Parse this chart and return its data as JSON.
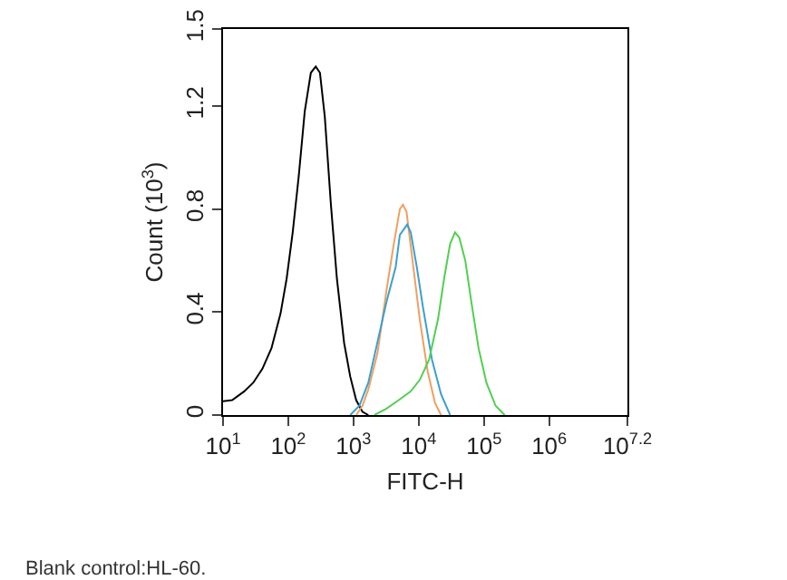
{
  "chart_data": {
    "type": "line",
    "xlabel": "FITC-H",
    "ylabel": "Count (10$^{3}$)",
    "log": "x",
    "marker": "none",
    "line_style": "solid",
    "xlim": [
      10,
      15848932
    ],
    "xticks": [
      {
        "value": 10,
        "label": "10$^{1}$"
      },
      {
        "value": 100,
        "label": "10$^{2}$"
      },
      {
        "value": 1000,
        "label": "10$^{3}$"
      },
      {
        "value": 10000,
        "label": "10$^{4}$"
      },
      {
        "value": 100000,
        "label": "10$^{5}$"
      },
      {
        "value": 1000000,
        "label": "10$^{6}$"
      },
      {
        "value": 15848932,
        "label": "10$^{7.2}$"
      }
    ],
    "ylim": [
      0,
      1.5
    ],
    "yticks": [
      0,
      0.4,
      0.8,
      1.2,
      1.5
    ],
    "annotations": [
      "Blank control:HL-60."
    ],
    "series": [
      {
        "color": "#000000",
        "x": [
          10,
          13.8,
          21.1,
          29.1,
          40.2,
          55.3,
          76.2,
          94.4,
          117,
          145,
          179,
          222,
          264,
          306,
          363,
          450,
          557,
          719,
          891,
          1100,
          1370,
          1690
        ],
        "values": [
          0.054,
          0.058,
          0.092,
          0.126,
          0.18,
          0.26,
          0.395,
          0.53,
          0.71,
          0.93,
          1.18,
          1.33,
          1.354,
          1.33,
          1.16,
          0.82,
          0.53,
          0.28,
          0.15,
          0.058,
          0.013,
          0
        ]
      },
      {
        "color": "#f0a060",
        "x": [
          1100,
          1370,
          1690,
          2330,
          3210,
          4150,
          5140,
          5730,
          6500,
          8050,
          10400,
          13700,
          17800,
          22000
        ],
        "values": [
          0,
          0.036,
          0.1,
          0.24,
          0.485,
          0.665,
          0.8,
          0.817,
          0.79,
          0.6,
          0.37,
          0.17,
          0.047,
          0
        ]
      },
      {
        "color": "#3aa0d0",
        "x": [
          891,
          1230,
          1690,
          2330,
          3210,
          4430,
          5140,
          6650,
          7550,
          9350,
          11600,
          16000,
          22000,
          30300
        ],
        "values": [
          0,
          0.036,
          0.126,
          0.283,
          0.44,
          0.575,
          0.7,
          0.74,
          0.71,
          0.575,
          0.42,
          0.215,
          0.081,
          0
        ]
      },
      {
        "color": "#50d050",
        "x": [
          2090,
          3210,
          4930,
          7550,
          10400,
          14400,
          19800,
          24500,
          30300,
          36000,
          41800,
          51800,
          64100,
          82800,
          109000,
          151000,
          208000
        ],
        "values": [
          0,
          0.025,
          0.058,
          0.092,
          0.137,
          0.215,
          0.373,
          0.53,
          0.665,
          0.71,
          0.69,
          0.6,
          0.44,
          0.26,
          0.126,
          0.036,
          0
        ]
      }
    ]
  }
}
